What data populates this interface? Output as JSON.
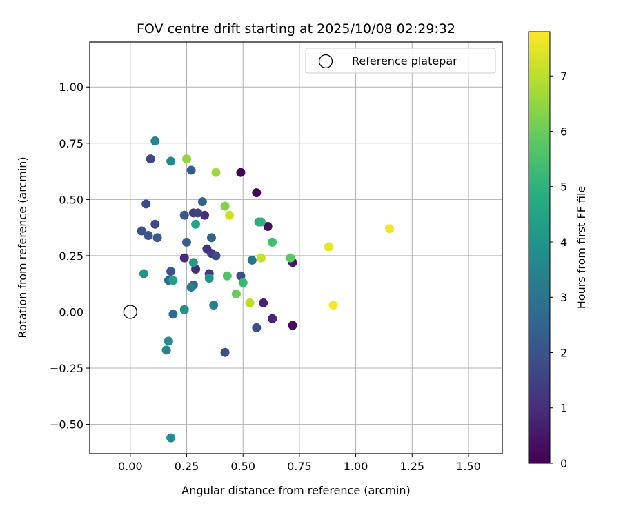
{
  "chart_data": {
    "type": "scatter",
    "title": "FOV centre drift starting at 2025/10/08 02:29:32",
    "xlabel": "Angular distance from reference (arcmin)",
    "ylabel": "Rotation from reference (arcmin)",
    "xlim": [
      -0.18,
      1.65
    ],
    "ylim": [
      -0.63,
      1.2
    ],
    "xticks": [
      0.0,
      0.25,
      0.5,
      0.75,
      1.0,
      1.25,
      1.5
    ],
    "xtick_labels": [
      "0.00",
      "0.25",
      "0.50",
      "0.75",
      "1.00",
      "1.25",
      "1.50"
    ],
    "yticks": [
      -0.5,
      -0.25,
      0.0,
      0.25,
      0.5,
      0.75,
      1.0
    ],
    "ytick_labels": [
      "−0.50",
      "−0.25",
      "0.00",
      "0.25",
      "0.50",
      "0.75",
      "1.00"
    ],
    "grid": true,
    "legend": {
      "position": "top-right",
      "entries": [
        "Reference platepar"
      ]
    },
    "reference_point": {
      "x": 0.0,
      "y": 0.0,
      "label": "Reference platepar"
    },
    "colorbar": {
      "label": "Hours from first FF file",
      "colormap": "viridis",
      "range": [
        0,
        7.8
      ],
      "ticks": [
        0,
        1,
        2,
        3,
        4,
        5,
        6,
        7
      ],
      "tick_labels": [
        "0",
        "1",
        "2",
        "3",
        "4",
        "5",
        "6",
        "7"
      ]
    },
    "points": [
      {
        "x": 0.49,
        "y": 0.62,
        "c": 0.0
      },
      {
        "x": 0.56,
        "y": 0.53,
        "c": 0.1
      },
      {
        "x": 0.72,
        "y": -0.06,
        "c": 0.2
      },
      {
        "x": 0.61,
        "y": 0.38,
        "c": 0.3
      },
      {
        "x": 0.72,
        "y": 0.22,
        "c": 0.5
      },
      {
        "x": 0.59,
        "y": 0.04,
        "c": 0.7
      },
      {
        "x": 0.63,
        "y": -0.03,
        "c": 0.8
      },
      {
        "x": 0.24,
        "y": 0.24,
        "c": 0.9
      },
      {
        "x": 0.33,
        "y": 0.43,
        "c": 1.0
      },
      {
        "x": 0.29,
        "y": 0.19,
        "c": 1.0
      },
      {
        "x": 0.34,
        "y": 0.28,
        "c": 1.1
      },
      {
        "x": 0.36,
        "y": 0.26,
        "c": 1.2
      },
      {
        "x": 0.35,
        "y": 0.17,
        "c": 1.3
      },
      {
        "x": 0.28,
        "y": 0.44,
        "c": 1.4
      },
      {
        "x": 0.3,
        "y": 0.44,
        "c": 1.5
      },
      {
        "x": 0.09,
        "y": 0.68,
        "c": 1.6
      },
      {
        "x": 0.07,
        "y": 0.48,
        "c": 1.7
      },
      {
        "x": 0.11,
        "y": 0.39,
        "c": 1.7
      },
      {
        "x": 0.38,
        "y": 0.25,
        "c": 1.8
      },
      {
        "x": 0.49,
        "y": 0.16,
        "c": 1.8
      },
      {
        "x": 0.56,
        "y": -0.07,
        "c": 1.9
      },
      {
        "x": 0.42,
        "y": -0.18,
        "c": 1.9
      },
      {
        "x": 0.18,
        "y": 0.18,
        "c": 2.0
      },
      {
        "x": 0.05,
        "y": 0.36,
        "c": 2.0
      },
      {
        "x": 0.08,
        "y": 0.34,
        "c": 2.1
      },
      {
        "x": 0.12,
        "y": 0.33,
        "c": 2.2
      },
      {
        "x": 0.24,
        "y": 0.43,
        "c": 2.2
      },
      {
        "x": 0.25,
        "y": 0.31,
        "c": 2.3
      },
      {
        "x": 0.27,
        "y": 0.63,
        "c": 2.3
      },
      {
        "x": 0.32,
        "y": 0.49,
        "c": 2.4
      },
      {
        "x": 0.36,
        "y": 0.33,
        "c": 2.5
      },
      {
        "x": 0.28,
        "y": 0.12,
        "c": 2.6
      },
      {
        "x": 0.19,
        "y": -0.01,
        "c": 2.7
      },
      {
        "x": 0.17,
        "y": 0.14,
        "c": 2.8
      },
      {
        "x": 0.54,
        "y": 0.23,
        "c": 3.0
      },
      {
        "x": 0.27,
        "y": 0.11,
        "c": 3.2
      },
      {
        "x": 0.37,
        "y": 0.03,
        "c": 3.4
      },
      {
        "x": 0.11,
        "y": 0.76,
        "c": 3.5
      },
      {
        "x": 0.18,
        "y": 0.67,
        "c": 3.6
      },
      {
        "x": 0.16,
        "y": -0.17,
        "c": 3.6
      },
      {
        "x": 0.17,
        "y": -0.13,
        "c": 3.7
      },
      {
        "x": 0.18,
        "y": -0.56,
        "c": 3.8
      },
      {
        "x": 0.24,
        "y": 0.01,
        "c": 3.9
      },
      {
        "x": 0.35,
        "y": 0.15,
        "c": 4.0
      },
      {
        "x": 0.06,
        "y": 0.17,
        "c": 4.0
      },
      {
        "x": 0.28,
        "y": 0.22,
        "c": 4.2
      },
      {
        "x": 0.19,
        "y": 0.14,
        "c": 4.4
      },
      {
        "x": 0.29,
        "y": 0.39,
        "c": 4.5
      },
      {
        "x": 0.57,
        "y": 0.4,
        "c": 4.6
      },
      {
        "x": 0.58,
        "y": 0.4,
        "c": 5.0
      },
      {
        "x": 0.5,
        "y": 0.13,
        "c": 5.2
      },
      {
        "x": 0.63,
        "y": 0.31,
        "c": 5.4
      },
      {
        "x": 0.43,
        "y": 0.16,
        "c": 5.6
      },
      {
        "x": 0.71,
        "y": 0.24,
        "c": 5.8
      },
      {
        "x": 0.47,
        "y": 0.08,
        "c": 6.0
      },
      {
        "x": 0.42,
        "y": 0.47,
        "c": 6.3
      },
      {
        "x": 0.25,
        "y": 0.68,
        "c": 6.5
      },
      {
        "x": 0.38,
        "y": 0.62,
        "c": 6.6
      },
      {
        "x": 0.53,
        "y": 0.04,
        "c": 7.0
      },
      {
        "x": 0.58,
        "y": 0.24,
        "c": 7.1
      },
      {
        "x": 0.44,
        "y": 0.43,
        "c": 7.2
      },
      {
        "x": 0.88,
        "y": 0.29,
        "c": 7.5
      },
      {
        "x": 1.15,
        "y": 0.37,
        "c": 7.6
      },
      {
        "x": 0.9,
        "y": 0.03,
        "c": 7.7
      }
    ]
  }
}
